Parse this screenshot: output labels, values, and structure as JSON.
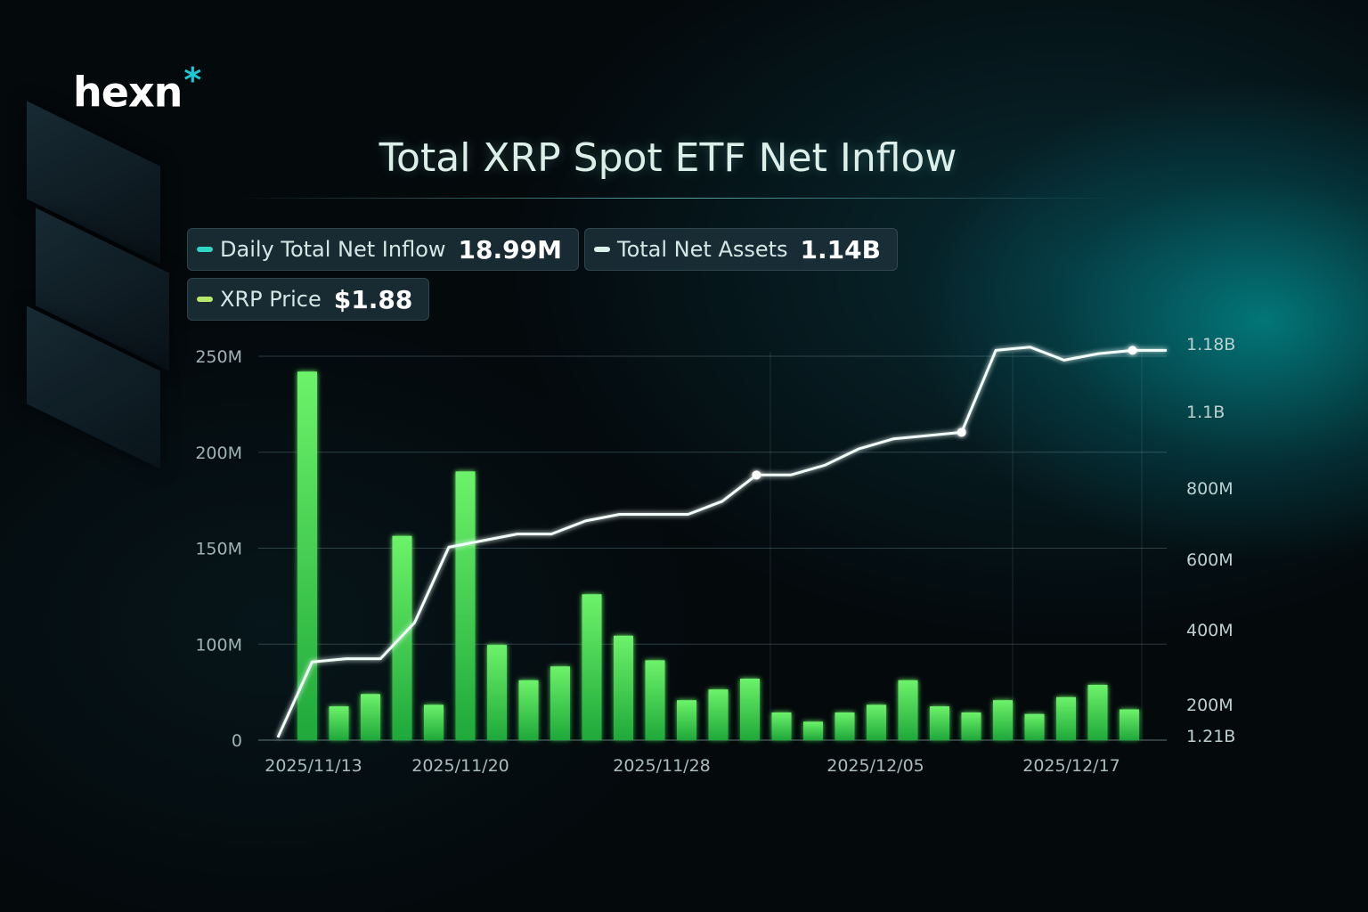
{
  "brand": {
    "logo_text": "hexn",
    "logo_mark": "*"
  },
  "chart_data": {
    "type": "bar",
    "title": "Total XRP Spot ETF Net Inflow",
    "legend": [
      {
        "label": "Daily Total Net Inflow",
        "value": "18.99M",
        "color": "#2fd6c4"
      },
      {
        "label": "Total Net Assets",
        "value": "1.14B",
        "color": "#d8f2ee"
      },
      {
        "label": "XRP Price",
        "value": "$1.88",
        "color": "#b6e86a"
      }
    ],
    "left_axis": {
      "ticks": [
        "250M",
        "200M",
        "150M",
        "100M",
        "0"
      ],
      "ylim": [
        0,
        250
      ]
    },
    "right_axis": {
      "ticks": [
        "1.18B",
        "1.1B",
        "800M",
        "600M",
        "400M",
        "200M",
        "1.21B"
      ]
    },
    "x_tick_labels": [
      "2025/11/13",
      "2025/11/20",
      "2025/11/28",
      "2025/12/05",
      "2025/12/17"
    ],
    "series": [
      {
        "name": "Daily Total Net Inflow",
        "type": "bar",
        "values": [
          240,
          22,
          30,
          133,
          23,
          175,
          62,
          39,
          48,
          95,
          68,
          52,
          26,
          33,
          40,
          18,
          12,
          18,
          23,
          39,
          22,
          18,
          26,
          17,
          28,
          36,
          20
        ]
      },
      {
        "name": "Total Net Assets",
        "type": "line",
        "x": [
          0,
          1,
          2,
          3,
          4,
          5,
          6,
          7,
          8,
          9,
          10,
          11,
          12,
          13,
          14,
          15,
          16,
          17,
          18,
          19,
          20,
          21,
          22,
          23,
          24,
          25,
          26
        ],
        "values": [
          0.0,
          0.23,
          0.24,
          0.24,
          0.35,
          0.58,
          0.6,
          0.62,
          0.62,
          0.66,
          0.68,
          0.68,
          0.68,
          0.72,
          0.8,
          0.8,
          0.83,
          0.88,
          0.91,
          0.92,
          0.93,
          1.18,
          1.19,
          1.15,
          1.17,
          1.18,
          1.18
        ]
      }
    ]
  }
}
